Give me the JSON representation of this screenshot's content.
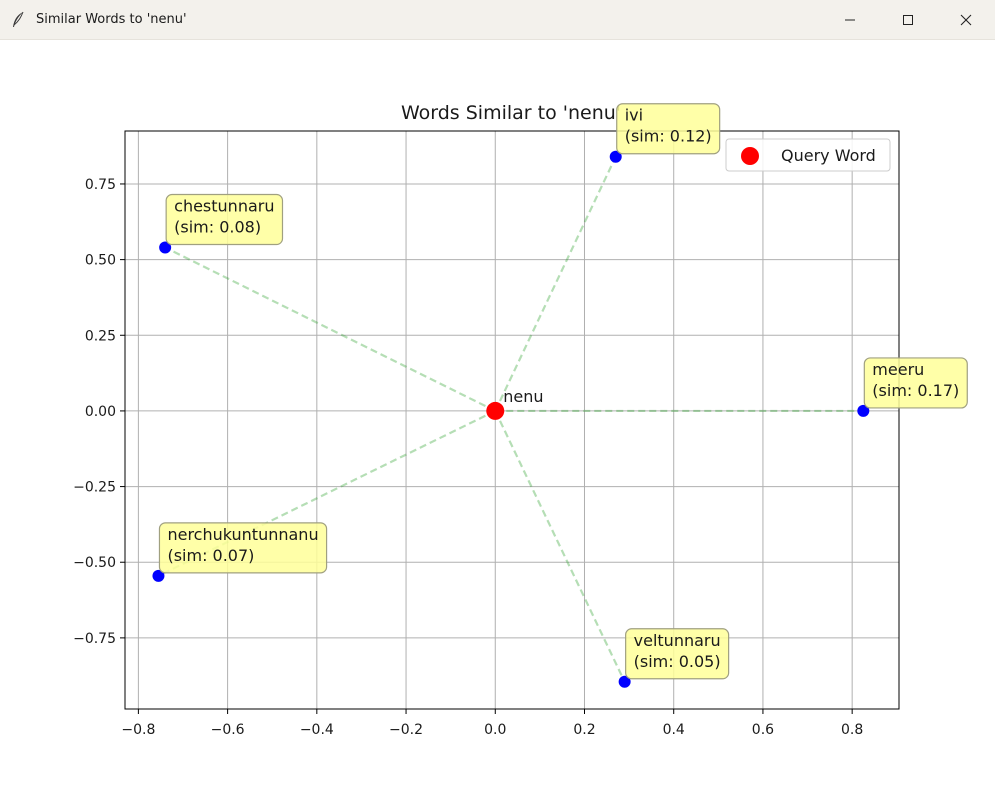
{
  "window": {
    "title": "Similar Words to 'nenu'",
    "icon": "feather-icon",
    "controls": [
      "minimize-icon",
      "maximize-icon",
      "close-icon"
    ]
  },
  "chart_data": {
    "type": "scatter",
    "title": "Words Similar to 'nenu'",
    "xlabel": "",
    "ylabel": "",
    "xlim": [
      -0.83,
      0.905
    ],
    "ylim": [
      -0.985,
      0.925
    ],
    "xticks": [
      -0.8,
      -0.6,
      -0.4,
      -0.2,
      0.0,
      0.2,
      0.4,
      0.6,
      0.8
    ],
    "xtick_labels": [
      "−0.8",
      "−0.6",
      "−0.4",
      "−0.2",
      "0.0",
      "0.2",
      "0.4",
      "0.6",
      "0.8"
    ],
    "yticks": [
      0.75,
      0.5,
      0.25,
      0.0,
      -0.25,
      -0.5,
      -0.75
    ],
    "ytick_labels": [
      "0.75",
      "0.50",
      "0.25",
      "0.00",
      "−0.25",
      "−0.50",
      "−0.75"
    ],
    "grid": true,
    "legend": {
      "placement": "top-right",
      "entries": [
        {
          "label": "Query Word",
          "color": "#ff0000"
        }
      ]
    },
    "query": {
      "word": "nenu",
      "x": 0.0,
      "y": 0.0,
      "color": "#ff0000"
    },
    "points": [
      {
        "word": "ivi",
        "sim_label": "(sim: 0.12)",
        "x": 0.27,
        "y": 0.84
      },
      {
        "word": "chestunnaru",
        "sim_label": "(sim: 0.08)",
        "x": -0.74,
        "y": 0.54
      },
      {
        "word": "meeru",
        "sim_label": "(sim: 0.17)",
        "x": 0.825,
        "y": 0.0
      },
      {
        "word": "nerchukuntunnanu",
        "sim_label": "(sim: 0.07)",
        "x": -0.755,
        "y": -0.545
      },
      {
        "word": "veltunnaru",
        "sim_label": "(sim: 0.05)",
        "x": 0.29,
        "y": -0.895
      }
    ],
    "colors": {
      "point": "#0000ff",
      "line": "#2ca02c",
      "annotation_fill": "#ffff99",
      "annotation_edge": "#a0a080",
      "grid": "#b0b0b0"
    }
  }
}
